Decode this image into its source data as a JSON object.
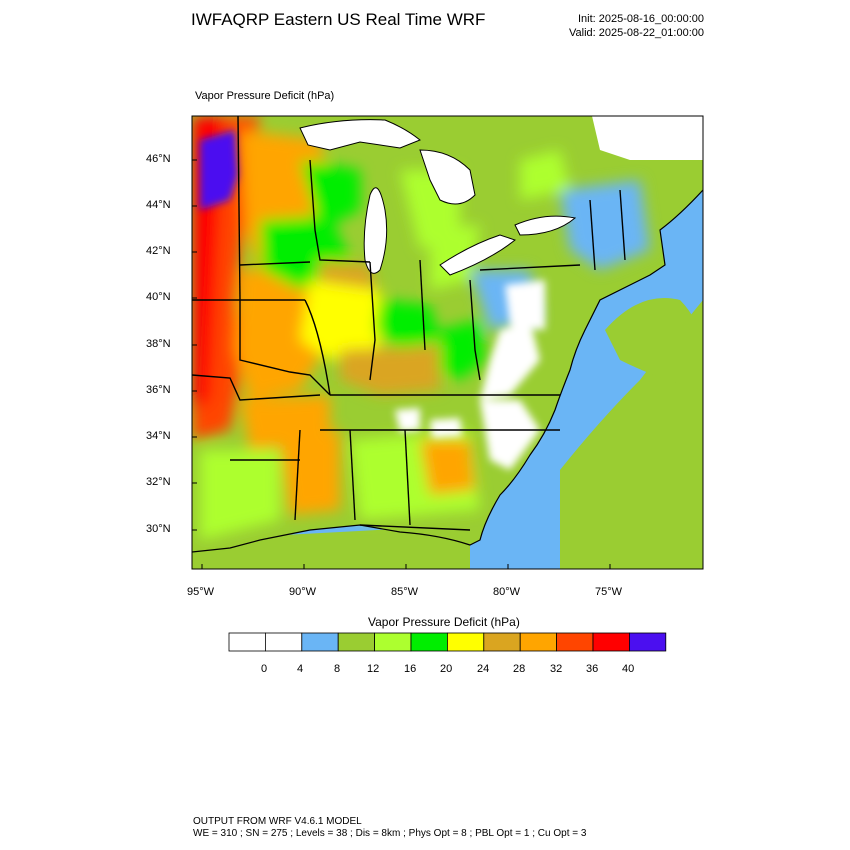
{
  "header": {
    "title": "IWFAQRP Eastern US Real Time WRF",
    "init": "Init: 2025-08-16_00:00:00",
    "valid": "Valid: 2025-08-22_01:00:00"
  },
  "map": {
    "subtitle": "Vapor Pressure Deficit   (hPa)",
    "lat_labels": [
      "46°N",
      "44°N",
      "42°N",
      "40°N",
      "38°N",
      "36°N",
      "34°N",
      "32°N",
      "30°N"
    ],
    "lon_labels": [
      "95°W",
      "90°W",
      "85°W",
      "80°W",
      "75°W"
    ],
    "ocean_color": "#6ab5f5",
    "land_base_color": "#9acd32"
  },
  "colorbar": {
    "title": "Vapor Pressure Deficit   (hPa)",
    "labels": [
      "0",
      "4",
      "8",
      "12",
      "16",
      "20",
      "24",
      "28",
      "32",
      "36",
      "40"
    ],
    "colors": [
      "#ffffff",
      "#ffffff",
      "#6ab5f5",
      "#9acd32",
      "#adff2f",
      "#00ee00",
      "#ffff00",
      "#daa520",
      "#ffa500",
      "#ff4500",
      "#ff0000",
      "#4b0ff0"
    ]
  },
  "footer": {
    "line1": "OUTPUT FROM WRF V4.6.1 MODEL",
    "line2": "WE = 310 ; SN = 275 ; Levels = 38 ; Dis = 8km ; Phys Opt = 8 ; PBL Opt = 1 ; Cu Opt = 3"
  }
}
